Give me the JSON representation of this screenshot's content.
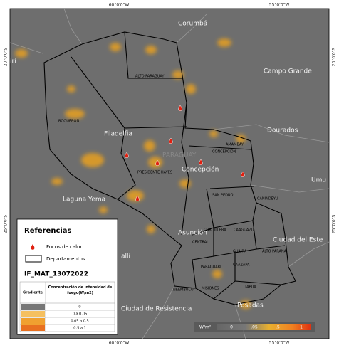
{
  "coords": {
    "top": [
      "60°0'0\"W",
      "55°0'0\"W"
    ],
    "bottom": [
      "60°0'0\"W",
      "55°0'0\"W"
    ],
    "left": [
      "20°0'0\"S",
      "25°0'0\"S"
    ],
    "right": [
      "20°0'0\"S",
      "25°0'0\"S"
    ]
  },
  "places": [
    "Corumbá",
    "Campo Grande",
    "Dourados",
    "Umu",
    "Filadelfia",
    "Laguna Yema",
    "Concepción",
    "Asunción",
    "Ciudad del Este",
    "Ciudad de Resistencia",
    "Posadas",
    "iri",
    "alli",
    "PARAGUAY"
  ],
  "departments": [
    "ALTO PARAGUAY",
    "BOQUERON",
    "PRESIDENTE HAYES",
    "CONCEPCION",
    "AMAMBAY",
    "SAN PEDRO",
    "CANINDEYU",
    "CORDILLERA",
    "CAAGUAZU",
    "CENTRAL",
    "PARAGUARI",
    "GUAIRA",
    "ALTO PARANA",
    "CAAZAPA",
    "MISIONES",
    "ITAPUA",
    "NEEMBUCU"
  ],
  "legend": {
    "title": "Referencias",
    "items": [
      "Focos de calor",
      "Departamentos"
    ],
    "layer": "IF_MAT_13072022",
    "table": {
      "header": [
        "Gradiente",
        "Concentración de intensidad de fuego(W/m2)"
      ],
      "rows": [
        "0",
        "0 a 0,05",
        "0,05 a 0,5",
        "0,5 a 1"
      ]
    }
  },
  "colorbar": {
    "unit": "W/m²",
    "labels": [
      "0",
      ".05",
      ".5",
      "1"
    ]
  }
}
